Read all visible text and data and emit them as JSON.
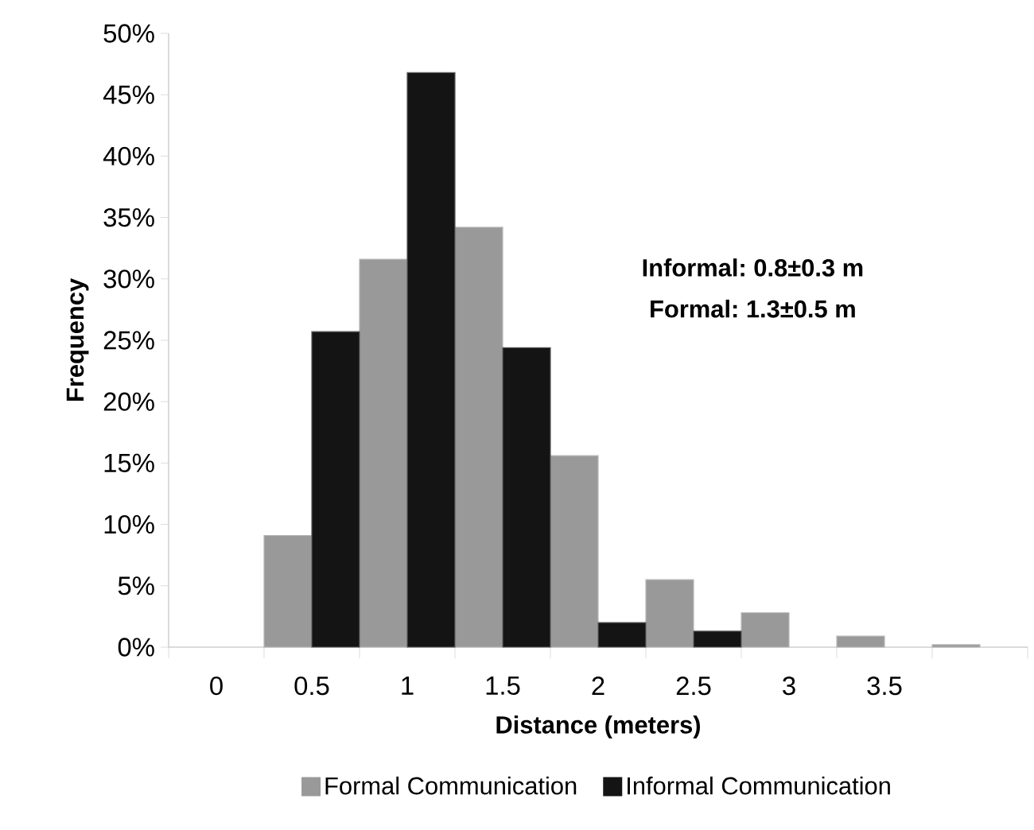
{
  "chart_data": {
    "type": "bar",
    "xlabel": "Distance (meters)",
    "ylabel": "Frequency",
    "categories": [
      "0",
      "0.5",
      "1",
      "1.5",
      "2",
      "2.5",
      "3",
      "3.5",
      null
    ],
    "series": [
      {
        "name": "Formal Communication",
        "color": "#999999",
        "values": [
          0,
          9.1,
          31.6,
          34.2,
          15.6,
          5.5,
          2.8,
          0.9,
          0.2
        ]
      },
      {
        "name": "Informal Communication",
        "color": "#141414",
        "values": [
          0,
          25.7,
          46.8,
          24.4,
          2.0,
          1.3,
          0,
          0,
          0
        ]
      }
    ],
    "ylim": [
      0,
      50
    ],
    "yticks": [
      {
        "value": 0,
        "label": "0%"
      },
      {
        "value": 5,
        "label": "5%"
      },
      {
        "value": 10,
        "label": "10%"
      },
      {
        "value": 15,
        "label": "15%"
      },
      {
        "value": 20,
        "label": "20%"
      },
      {
        "value": 25,
        "label": "25%"
      },
      {
        "value": 30,
        "label": "30%"
      },
      {
        "value": 35,
        "label": "35%"
      },
      {
        "value": 40,
        "label": "40%"
      },
      {
        "value": 45,
        "label": "45%"
      },
      {
        "value": 50,
        "label": "50%"
      }
    ],
    "annotations": [
      "Informal: 0.8±0.3 m",
      "Formal: 1.3±0.5 m"
    ],
    "legend": "bottom",
    "grid": false
  }
}
